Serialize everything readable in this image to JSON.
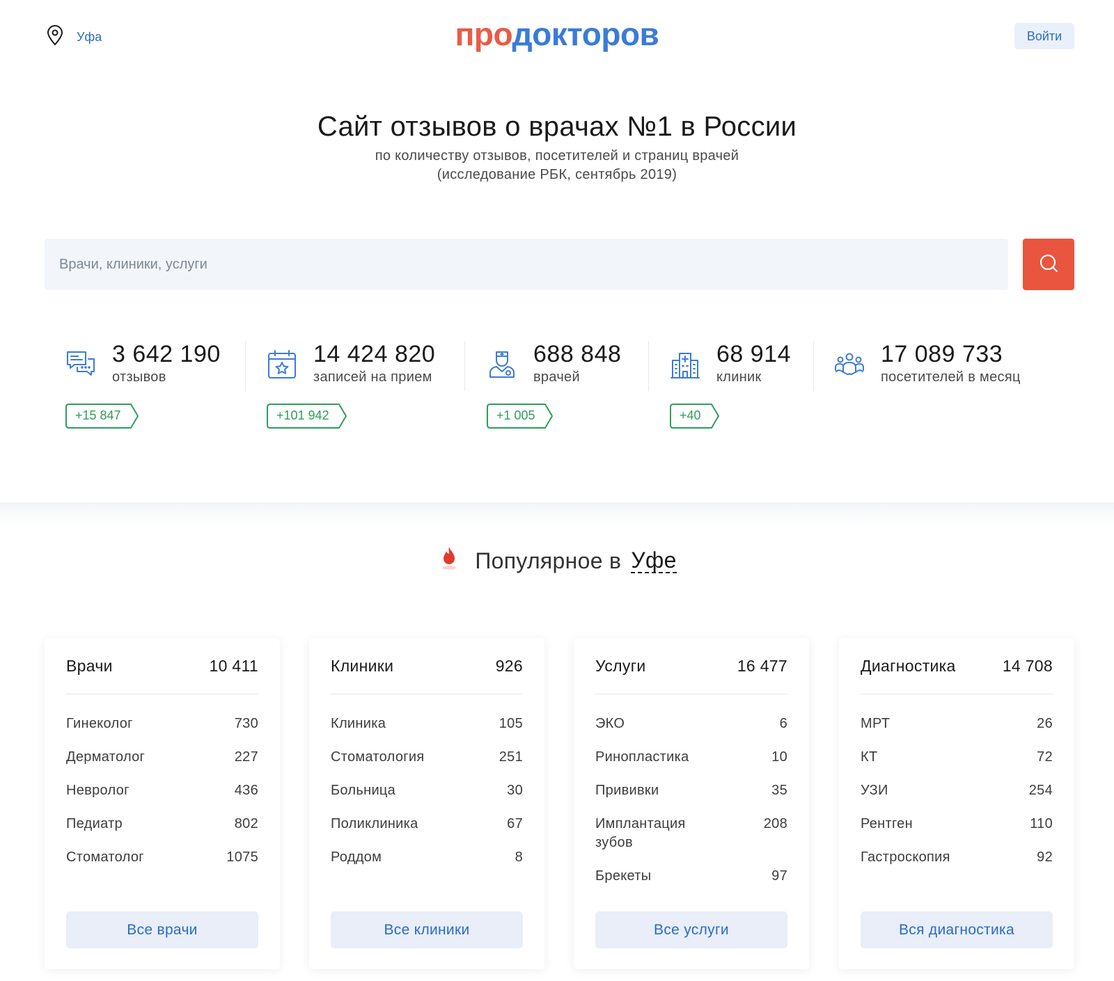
{
  "header": {
    "city": "Уфа",
    "logo": {
      "part1": "про",
      "part2": "докторов"
    },
    "login_label": "Войти"
  },
  "hero": {
    "title": "Сайт отзывов о врачах №1 в России",
    "subtitle_line1": "по количеству отзывов, посетителей и страниц врачей",
    "subtitle_line2": "(исследование РБК, сентябрь 2019)"
  },
  "search": {
    "placeholder": "Врачи, клиники, услуги",
    "value": ""
  },
  "stats": [
    {
      "icon": "reviews-icon",
      "number": "3 642 190",
      "label": "отзывов",
      "delta": "+15 847"
    },
    {
      "icon": "calendar-star-icon",
      "number": "14 424 820",
      "label": "записей на прием",
      "delta": "+101 942"
    },
    {
      "icon": "doctor-icon",
      "number": "688 848",
      "label": "врачей",
      "delta": "+1 005"
    },
    {
      "icon": "clinic-building-icon",
      "number": "68 914",
      "label": "клиник",
      "delta": "+40"
    },
    {
      "icon": "visitors-icon",
      "number": "17 089 733",
      "label": "посетителей в месяц"
    }
  ],
  "popular": {
    "title_prefix": "Популярное в",
    "city": "Уфе"
  },
  "cards": [
    {
      "title": "Врачи",
      "count": "10 411",
      "items": [
        {
          "label": "Гинеколог",
          "count": "730"
        },
        {
          "label": "Дерматолог",
          "count": "227"
        },
        {
          "label": "Невролог",
          "count": "436"
        },
        {
          "label": "Педиатр",
          "count": "802"
        },
        {
          "label": "Стоматолог",
          "count": "1075"
        }
      ],
      "button": "Все врачи"
    },
    {
      "title": "Клиники",
      "count": "926",
      "items": [
        {
          "label": "Клиника",
          "count": "105"
        },
        {
          "label": "Стоматология",
          "count": "251"
        },
        {
          "label": "Больница",
          "count": "30"
        },
        {
          "label": "Поликлиника",
          "count": "67"
        },
        {
          "label": "Роддом",
          "count": "8"
        }
      ],
      "button": "Все клиники"
    },
    {
      "title": "Услуги",
      "count": "16 477",
      "items": [
        {
          "label": "ЭКО",
          "count": "6"
        },
        {
          "label": "Ринопластика",
          "count": "10"
        },
        {
          "label": "Прививки",
          "count": "35"
        },
        {
          "label": "Имплантация зубов",
          "count": "208"
        },
        {
          "label": "Брекеты",
          "count": "97"
        }
      ],
      "button": "Все услуги"
    },
    {
      "title": "Диагностика",
      "count": "14 708",
      "items": [
        {
          "label": "МРТ",
          "count": "26"
        },
        {
          "label": "КТ",
          "count": "72"
        },
        {
          "label": "УЗИ",
          "count": "254"
        },
        {
          "label": "Рентген",
          "count": "110"
        },
        {
          "label": "Гастроскопия",
          "count": "92"
        }
      ],
      "button": "Вся диагностика"
    }
  ],
  "colors": {
    "brand_red": "#ea5b45",
    "brand_blue": "#3b7bd8",
    "link_blue": "#2b6cc4",
    "delta_green": "#2e9e5b",
    "search_button": "#e9553f"
  }
}
